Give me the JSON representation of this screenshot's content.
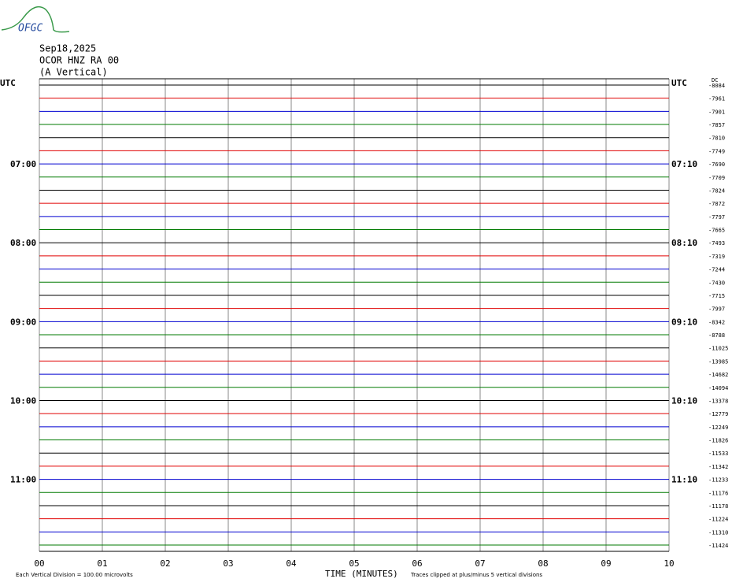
{
  "chart_data": {
    "type": "helicorder",
    "logo": "OFGC",
    "date": "Sep18,2025",
    "station": "OCOR HNZ RA 00",
    "component": "(A Vertical)",
    "dc_label": "DC",
    "left_labels": [
      "UTC",
      null,
      null,
      null,
      null,
      null,
      "07:00",
      null,
      null,
      null,
      null,
      null,
      "08:00",
      null,
      null,
      null,
      null,
      null,
      "09:00",
      null,
      null,
      null,
      null,
      null,
      "10:00",
      null,
      null,
      null,
      null,
      null,
      "11:00",
      null,
      null,
      null,
      null,
      null
    ],
    "right_labels": [
      "UTC",
      null,
      null,
      null,
      null,
      null,
      "07:10",
      null,
      null,
      null,
      null,
      null,
      "08:10",
      null,
      null,
      null,
      null,
      null,
      "09:10",
      null,
      null,
      null,
      null,
      null,
      "10:10",
      null,
      null,
      null,
      null,
      null,
      "11:10",
      null,
      null,
      null,
      null,
      null
    ],
    "offsets": [
      -8084,
      -7961,
      -7901,
      -7857,
      -7810,
      -7749,
      -7690,
      -7709,
      -7824,
      -7872,
      -7797,
      -7665,
      -7493,
      -7319,
      -7244,
      -7430,
      -7715,
      -7997,
      -8342,
      -8788,
      -11025,
      -13985,
      -14682,
      -14094,
      -13378,
      -12779,
      -12249,
      -11826,
      -11533,
      -11342,
      -11233,
      -11176,
      -11178,
      -11224,
      -11310,
      -11424
    ],
    "trace_colors": [
      "#000000",
      "#e00000",
      "#0000d0",
      "#007a00"
    ],
    "xlim": [
      0,
      10
    ],
    "xticks": [
      {
        "value": 0,
        "label": "00"
      },
      {
        "value": 1,
        "label": "01"
      },
      {
        "value": 2,
        "label": "02"
      },
      {
        "value": 3,
        "label": "03"
      },
      {
        "value": 4,
        "label": "04"
      },
      {
        "value": 5,
        "label": "05"
      },
      {
        "value": 6,
        "label": "06"
      },
      {
        "value": 7,
        "label": "07"
      },
      {
        "value": 8,
        "label": "08"
      },
      {
        "value": 9,
        "label": "09"
      },
      {
        "value": 10,
        "label": "10"
      }
    ],
    "x_label": "TIME (MINUTES)",
    "footer_left": "Each Vertical Division =  100.00 microvolts",
    "footer_right": "Traces clipped at plus/minus 5 vertical divisions"
  }
}
